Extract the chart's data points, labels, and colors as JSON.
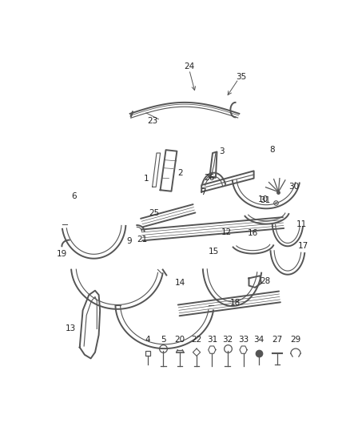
{
  "bg_color": "#ffffff",
  "lc": "#555555",
  "lc_dark": "#333333"
}
